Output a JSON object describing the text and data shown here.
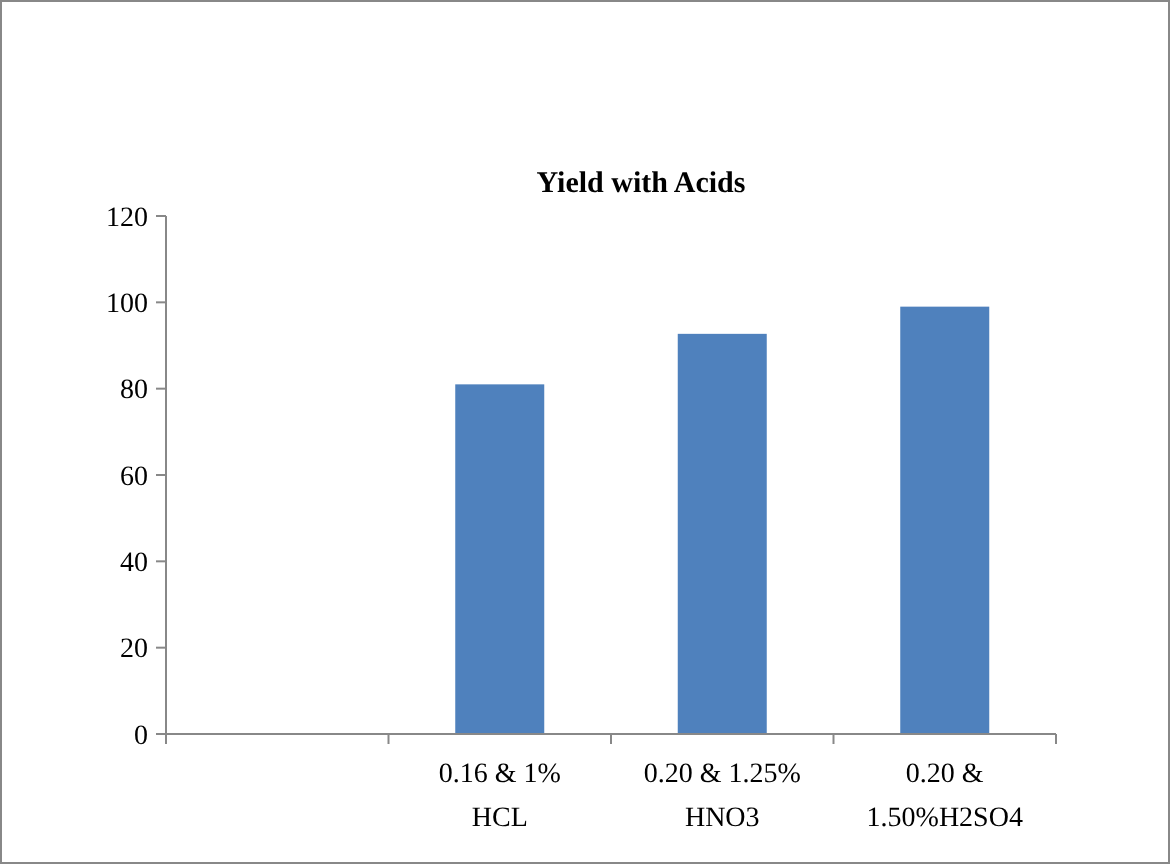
{
  "chart_data": {
    "type": "bar",
    "title": "Yield with Acids",
    "categories": [
      null,
      "0.16 & 1% HCL",
      "0.20 & 1.25% HNO3",
      "0.20 & 1.50%H2SO4"
    ],
    "values": [
      null,
      81,
      92.7,
      99
    ],
    "color": "#4f81bd",
    "ylim": [
      0,
      120
    ],
    "yticks": [
      0,
      20,
      40,
      60,
      80,
      100,
      120
    ],
    "grid": false
  }
}
